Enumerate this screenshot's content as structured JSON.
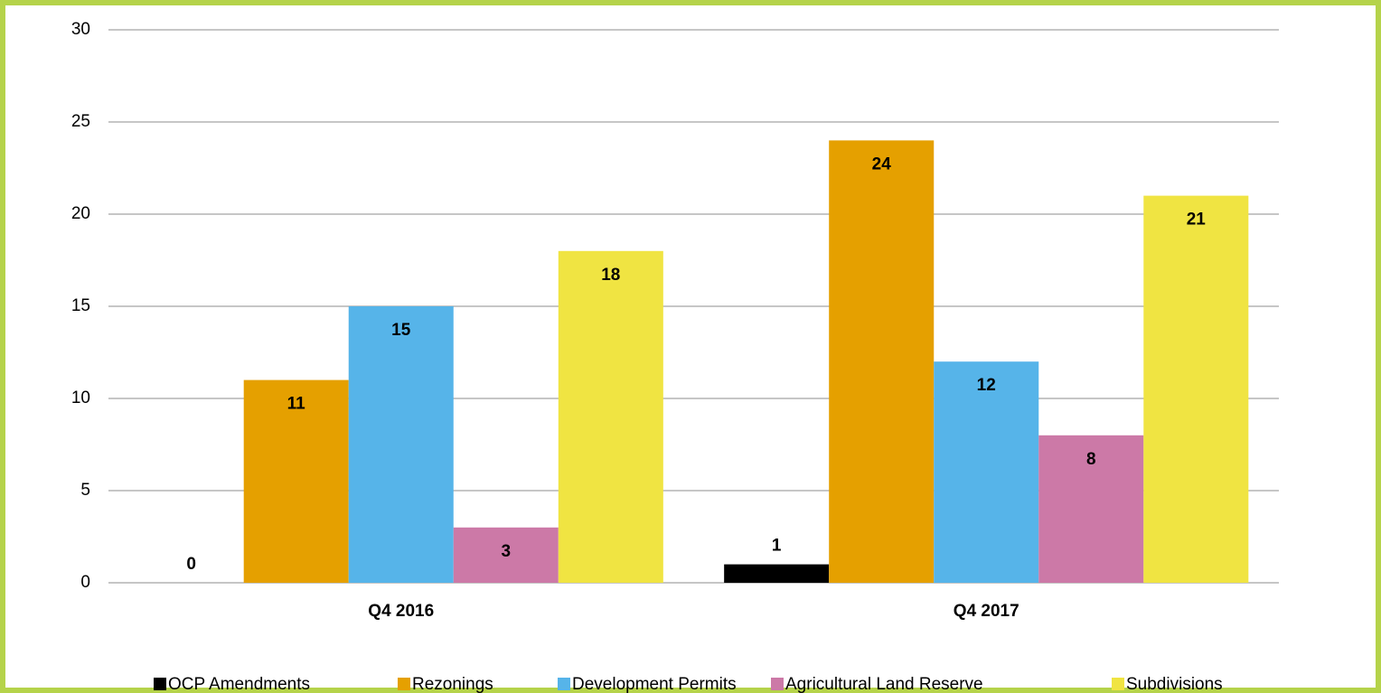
{
  "chart_data": {
    "type": "bar",
    "categories": [
      "Q4 2016",
      "Q4 2017"
    ],
    "series": [
      {
        "name": "OCP Amendments",
        "color": "#000000",
        "values": [
          0,
          1
        ]
      },
      {
        "name": "Rezonings",
        "color": "#e5a000",
        "values": [
          11,
          24
        ]
      },
      {
        "name": "Development Permits",
        "color": "#56b4e9",
        "values": [
          15,
          12
        ]
      },
      {
        "name": "Agricultural Land Reserve",
        "color": "#cc79a7",
        "values": [
          3,
          8
        ]
      },
      {
        "name": "Subdivisions",
        "color": "#f0e442",
        "values": [
          18,
          21
        ]
      }
    ],
    "ylim": [
      0,
      30
    ],
    "yticks": [
      0,
      5,
      10,
      15,
      20,
      25,
      30
    ],
    "grid": true,
    "legend": "bottom"
  }
}
